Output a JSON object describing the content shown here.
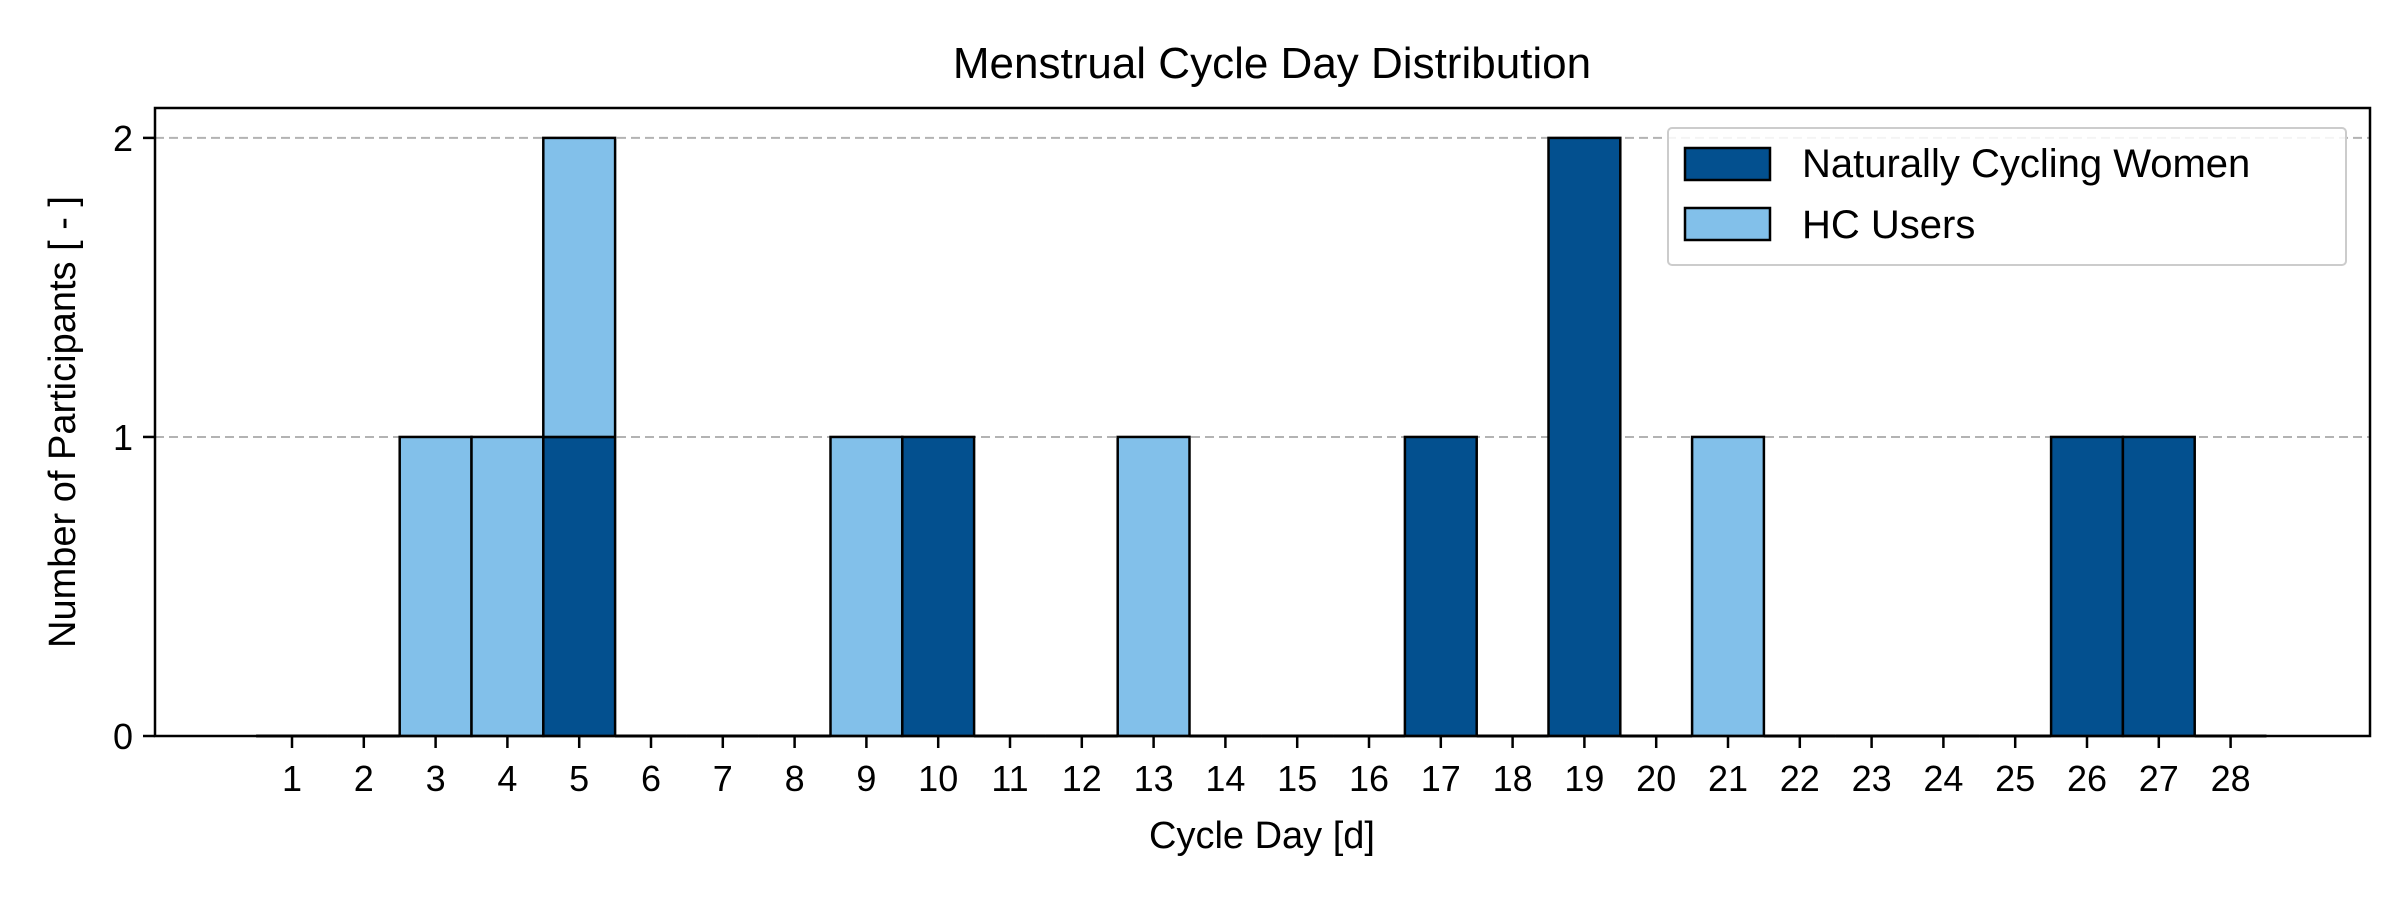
{
  "chart_data": {
    "type": "bar",
    "stacked": true,
    "title": "Menstrual Cycle Day Distribution",
    "xlabel": "Cycle Day [d]",
    "ylabel": "Number of Participants [ - ]",
    "categories": [
      1,
      2,
      3,
      4,
      5,
      6,
      7,
      8,
      9,
      10,
      11,
      12,
      13,
      14,
      15,
      16,
      17,
      18,
      19,
      20,
      21,
      22,
      23,
      24,
      25,
      26,
      27,
      28
    ],
    "yticks": [
      0,
      1,
      2
    ],
    "ylim": [
      0,
      2.1
    ],
    "grid": "horizontal, dashed",
    "legend_position": "top-right",
    "series": [
      {
        "name": "Naturally Cycling Women",
        "color": "#03508f",
        "values": [
          0,
          0,
          0,
          0,
          1,
          0,
          0,
          0,
          0,
          1,
          0,
          0,
          0,
          0,
          0,
          0,
          1,
          0,
          2,
          0,
          0,
          0,
          0,
          0,
          0,
          1,
          1,
          0
        ]
      },
      {
        "name": "HC Users",
        "color": "#82c0ea",
        "values": [
          0,
          0,
          1,
          1,
          1,
          0,
          0,
          0,
          1,
          0,
          0,
          0,
          1,
          0,
          0,
          0,
          0,
          0,
          0,
          0,
          1,
          0,
          0,
          0,
          0,
          0,
          0,
          0
        ]
      }
    ]
  }
}
